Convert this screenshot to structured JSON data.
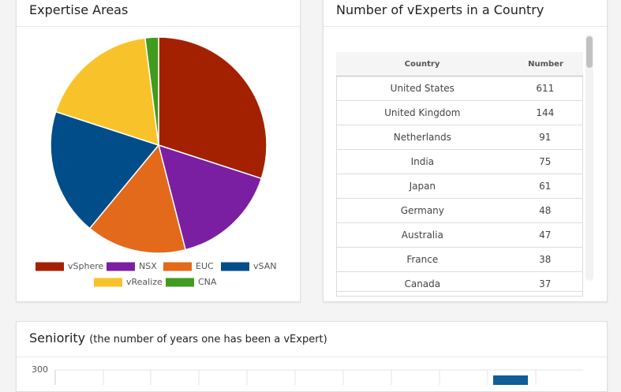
{
  "expertise": {
    "title": "Expertise Areas",
    "chart_data": {
      "type": "pie",
      "categories": [
        "vSphere",
        "NSX",
        "EUC",
        "vSAN",
        "vRealize",
        "CNA"
      ],
      "values": [
        30,
        16,
        15,
        19,
        18,
        2
      ],
      "colors": [
        "#a32100",
        "#7b1fa2",
        "#e3691b",
        "#004d8a",
        "#f8c32a",
        "#3f9c1f"
      ]
    }
  },
  "countries": {
    "title": "Number of vExperts in a Country",
    "table": {
      "columns": [
        "Country",
        "Number"
      ],
      "rows": [
        [
          "United States",
          "611"
        ],
        [
          "United Kingdom",
          "144"
        ],
        [
          "Netherlands",
          "91"
        ],
        [
          "India",
          "75"
        ],
        [
          "Japan",
          "61"
        ],
        [
          "Germany",
          "48"
        ],
        [
          "Australia",
          "47"
        ],
        [
          "France",
          "38"
        ],
        [
          "Canada",
          "37"
        ]
      ]
    }
  },
  "seniority": {
    "title": "Seniority",
    "subtitle": "(the number of years one has been a vExpert)",
    "yticks": [
      300
    ]
  }
}
